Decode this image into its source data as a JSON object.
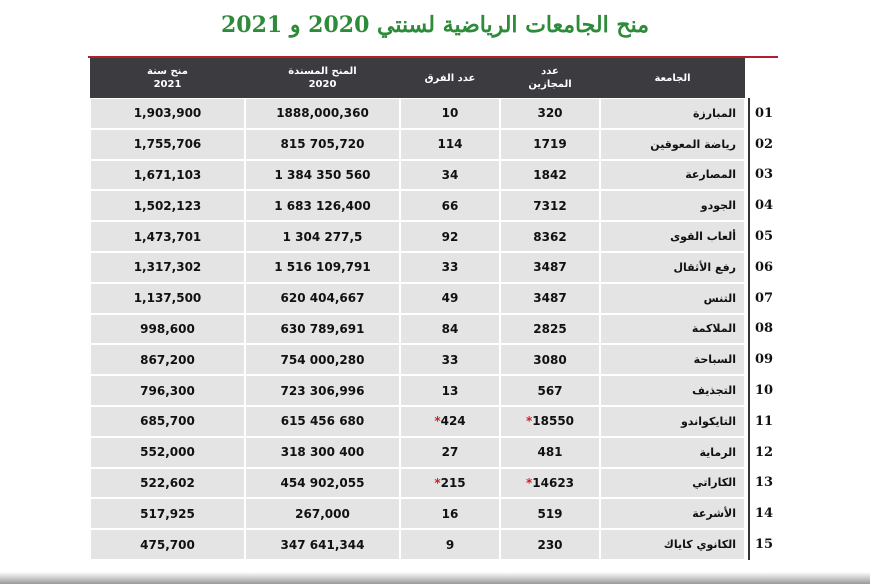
{
  "header": {
    "title": "منح الجامعات الرياضية لسنتي 2020 و 2021"
  },
  "table": {
    "columns": [
      [
        "الجامعة"
      ],
      [
        "عدد",
        "المجازين"
      ],
      [
        "عدد الفرق"
      ],
      [
        "المنح المسندة",
        "2020"
      ],
      [
        "منح سنة",
        "2021"
      ]
    ],
    "rows": [
      [
        "01",
        "المبارزة",
        "320",
        "10",
        "1888,000,360",
        "1,903,900"
      ],
      [
        "02",
        "رياضة المعوقين",
        "1719",
        "114",
        "815 705,720",
        "1,755,706"
      ],
      [
        "03",
        "المصارعة",
        "1842",
        "34",
        "1 384 350 560",
        "1,671,103"
      ],
      [
        "04",
        "الجودو",
        "7312",
        "66",
        "1 683 126,400",
        "1,502,123"
      ],
      [
        "05",
        "ألعاب القوى",
        "8362",
        "92",
        "1 304 277,5",
        "1,473,701"
      ],
      [
        "06",
        "رفع الأثقال",
        "3487",
        "33",
        "1 516 109,791",
        "1,317,302"
      ],
      [
        "07",
        "التنس",
        "3487",
        "49",
        "620 404,667",
        "1,137,500"
      ],
      [
        "08",
        "الملاكمة",
        "2825",
        "84",
        "630 789,691",
        "998,600"
      ],
      [
        "09",
        "السباحة",
        "3080",
        "33",
        "754 000,280",
        "867,200"
      ],
      [
        "10",
        "التجذيف",
        "567",
        "13",
        "723 306,996",
        "796,300"
      ],
      [
        "11",
        "التايكواندو",
        {
          "text": "18550",
          "mark": "*"
        },
        {
          "text": "424",
          "mark": "*"
        },
        "615 456 680",
        "685,700"
      ],
      [
        "12",
        "الرماية",
        "481",
        "27",
        "318 300 400",
        "552,000"
      ],
      [
        "13",
        "الكاراتي",
        {
          "text": "14623",
          "mark": "*"
        },
        {
          "text": "215",
          "mark": "*"
        },
        "454 902,055",
        "522,602"
      ],
      [
        "14",
        "الأشرعة",
        "519",
        "16",
        "267,000",
        "517,925"
      ],
      [
        "15",
        "الكانوي كاياك",
        "230",
        "9",
        "347 641,344",
        "475,700"
      ]
    ]
  }
}
